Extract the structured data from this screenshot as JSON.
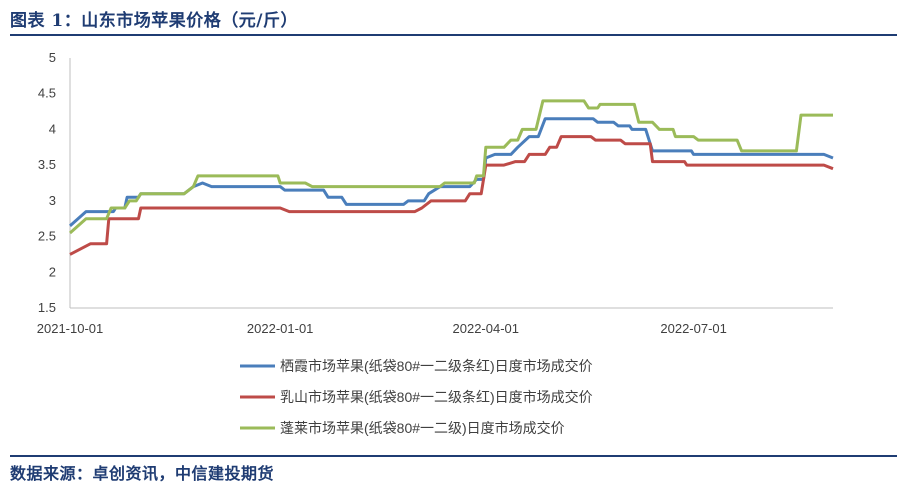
{
  "header": {
    "title": "图表 1：山东市场苹果价格（元/斤）"
  },
  "footer": {
    "source": "数据来源：卓创资讯，中信建投期货"
  },
  "chart_data": {
    "type": "line",
    "title": "",
    "xlabel": "",
    "ylabel": "",
    "ylim": [
      1.5,
      5
    ],
    "yticks": [
      "1.5",
      "2",
      "2.5",
      "3",
      "3.5",
      "4",
      "4.5",
      "5"
    ],
    "xticks": [
      "2021-10-01",
      "2022-01-01",
      "2022-04-01",
      "2022-07-01"
    ],
    "x_range": [
      "2021-10-01",
      "2022-08-31"
    ],
    "grid": false,
    "legend": "bottom",
    "series": [
      {
        "name": "栖霞市场苹果(纸袋80#一二级条红)日度市场成交价",
        "color": "#4a7ebb",
        "points": [
          [
            "2021-10-01",
            2.65
          ],
          [
            "2021-10-08",
            2.85
          ],
          [
            "2021-10-20",
            2.85
          ],
          [
            "2021-10-21",
            2.9
          ],
          [
            "2021-10-25",
            2.9
          ],
          [
            "2021-10-26",
            3.05
          ],
          [
            "2021-10-31",
            3.05
          ],
          [
            "2021-11-01",
            3.1
          ],
          [
            "2021-11-20",
            3.1
          ],
          [
            "2021-11-24",
            3.2
          ],
          [
            "2021-11-28",
            3.25
          ],
          [
            "2021-12-02",
            3.2
          ],
          [
            "2022-01-01",
            3.2
          ],
          [
            "2022-01-03",
            3.15
          ],
          [
            "2022-01-20",
            3.15
          ],
          [
            "2022-01-22",
            3.05
          ],
          [
            "2022-01-28",
            3.05
          ],
          [
            "2022-01-30",
            2.95
          ],
          [
            "2022-02-24",
            2.95
          ],
          [
            "2022-02-26",
            3.0
          ],
          [
            "2022-03-05",
            3.0
          ],
          [
            "2022-03-07",
            3.1
          ],
          [
            "2022-03-12",
            3.2
          ],
          [
            "2022-03-25",
            3.2
          ],
          [
            "2022-03-28",
            3.3
          ],
          [
            "2022-03-31",
            3.3
          ],
          [
            "2022-04-01",
            3.6
          ],
          [
            "2022-04-05",
            3.65
          ],
          [
            "2022-04-12",
            3.65
          ],
          [
            "2022-04-15",
            3.75
          ],
          [
            "2022-04-20",
            3.9
          ],
          [
            "2022-04-24",
            3.9
          ],
          [
            "2022-04-27",
            4.15
          ],
          [
            "2022-05-18",
            4.15
          ],
          [
            "2022-05-20",
            4.1
          ],
          [
            "2022-05-27",
            4.1
          ],
          [
            "2022-05-29",
            4.05
          ],
          [
            "2022-06-03",
            4.05
          ],
          [
            "2022-06-04",
            4.0
          ],
          [
            "2022-06-10",
            4.0
          ],
          [
            "2022-06-13",
            3.7
          ],
          [
            "2022-06-30",
            3.7
          ],
          [
            "2022-07-01",
            3.65
          ],
          [
            "2022-08-27",
            3.65
          ],
          [
            "2022-08-31",
            3.6
          ]
        ]
      },
      {
        "name": "乳山市场苹果(纸袋80#一二级条红)日度市场成交价",
        "color": "#be4b48",
        "points": [
          [
            "2021-10-01",
            2.25
          ],
          [
            "2021-10-10",
            2.4
          ],
          [
            "2021-10-17",
            2.4
          ],
          [
            "2021-10-18",
            2.75
          ],
          [
            "2021-10-31",
            2.75
          ],
          [
            "2021-11-01",
            2.9
          ],
          [
            "2022-01-01",
            2.9
          ],
          [
            "2022-01-05",
            2.85
          ],
          [
            "2022-03-01",
            2.85
          ],
          [
            "2022-03-04",
            2.9
          ],
          [
            "2022-03-08",
            3.0
          ],
          [
            "2022-03-23",
            3.0
          ],
          [
            "2022-03-25",
            3.1
          ],
          [
            "2022-03-30",
            3.1
          ],
          [
            "2022-04-01",
            3.5
          ],
          [
            "2022-04-09",
            3.5
          ],
          [
            "2022-04-14",
            3.55
          ],
          [
            "2022-04-18",
            3.55
          ],
          [
            "2022-04-20",
            3.65
          ],
          [
            "2022-04-27",
            3.65
          ],
          [
            "2022-04-29",
            3.75
          ],
          [
            "2022-05-02",
            3.75
          ],
          [
            "2022-05-04",
            3.9
          ],
          [
            "2022-05-17",
            3.9
          ],
          [
            "2022-05-19",
            3.85
          ],
          [
            "2022-05-30",
            3.85
          ],
          [
            "2022-06-01",
            3.8
          ],
          [
            "2022-06-12",
            3.8
          ],
          [
            "2022-06-13",
            3.55
          ],
          [
            "2022-06-27",
            3.55
          ],
          [
            "2022-06-28",
            3.5
          ],
          [
            "2022-08-27",
            3.5
          ],
          [
            "2022-08-31",
            3.45
          ]
        ]
      },
      {
        "name": "蓬莱市场苹果(纸袋80#一二级)日度市场成交价",
        "color": "#9bbb59",
        "points": [
          [
            "2021-10-01",
            2.55
          ],
          [
            "2021-10-08",
            2.75
          ],
          [
            "2021-10-17",
            2.75
          ],
          [
            "2021-10-19",
            2.9
          ],
          [
            "2021-10-25",
            2.9
          ],
          [
            "2021-10-27",
            3.0
          ],
          [
            "2021-10-30",
            3.0
          ],
          [
            "2021-11-01",
            3.1
          ],
          [
            "2021-11-20",
            3.1
          ],
          [
            "2021-11-24",
            3.2
          ],
          [
            "2021-11-26",
            3.35
          ],
          [
            "2021-12-31",
            3.35
          ],
          [
            "2022-01-01",
            3.25
          ],
          [
            "2022-01-12",
            3.25
          ],
          [
            "2022-01-15",
            3.2
          ],
          [
            "2022-03-12",
            3.2
          ],
          [
            "2022-03-14",
            3.25
          ],
          [
            "2022-03-27",
            3.25
          ],
          [
            "2022-03-28",
            3.35
          ],
          [
            "2022-03-31",
            3.35
          ],
          [
            "2022-04-01",
            3.75
          ],
          [
            "2022-04-09",
            3.75
          ],
          [
            "2022-04-12",
            3.85
          ],
          [
            "2022-04-15",
            3.85
          ],
          [
            "2022-04-17",
            4.0
          ],
          [
            "2022-04-23",
            4.0
          ],
          [
            "2022-04-26",
            4.4
          ],
          [
            "2022-05-14",
            4.4
          ],
          [
            "2022-05-16",
            4.3
          ],
          [
            "2022-05-20",
            4.3
          ],
          [
            "2022-05-21",
            4.35
          ],
          [
            "2022-06-05",
            4.35
          ],
          [
            "2022-06-07",
            4.1
          ],
          [
            "2022-06-13",
            4.1
          ],
          [
            "2022-06-16",
            4.0
          ],
          [
            "2022-06-22",
            4.0
          ],
          [
            "2022-06-23",
            3.9
          ],
          [
            "2022-07-01",
            3.9
          ],
          [
            "2022-07-03",
            3.85
          ],
          [
            "2022-07-20",
            3.85
          ],
          [
            "2022-07-22",
            3.7
          ],
          [
            "2022-08-15",
            3.7
          ],
          [
            "2022-08-17",
            4.2
          ],
          [
            "2022-08-31",
            4.2
          ]
        ]
      }
    ]
  }
}
